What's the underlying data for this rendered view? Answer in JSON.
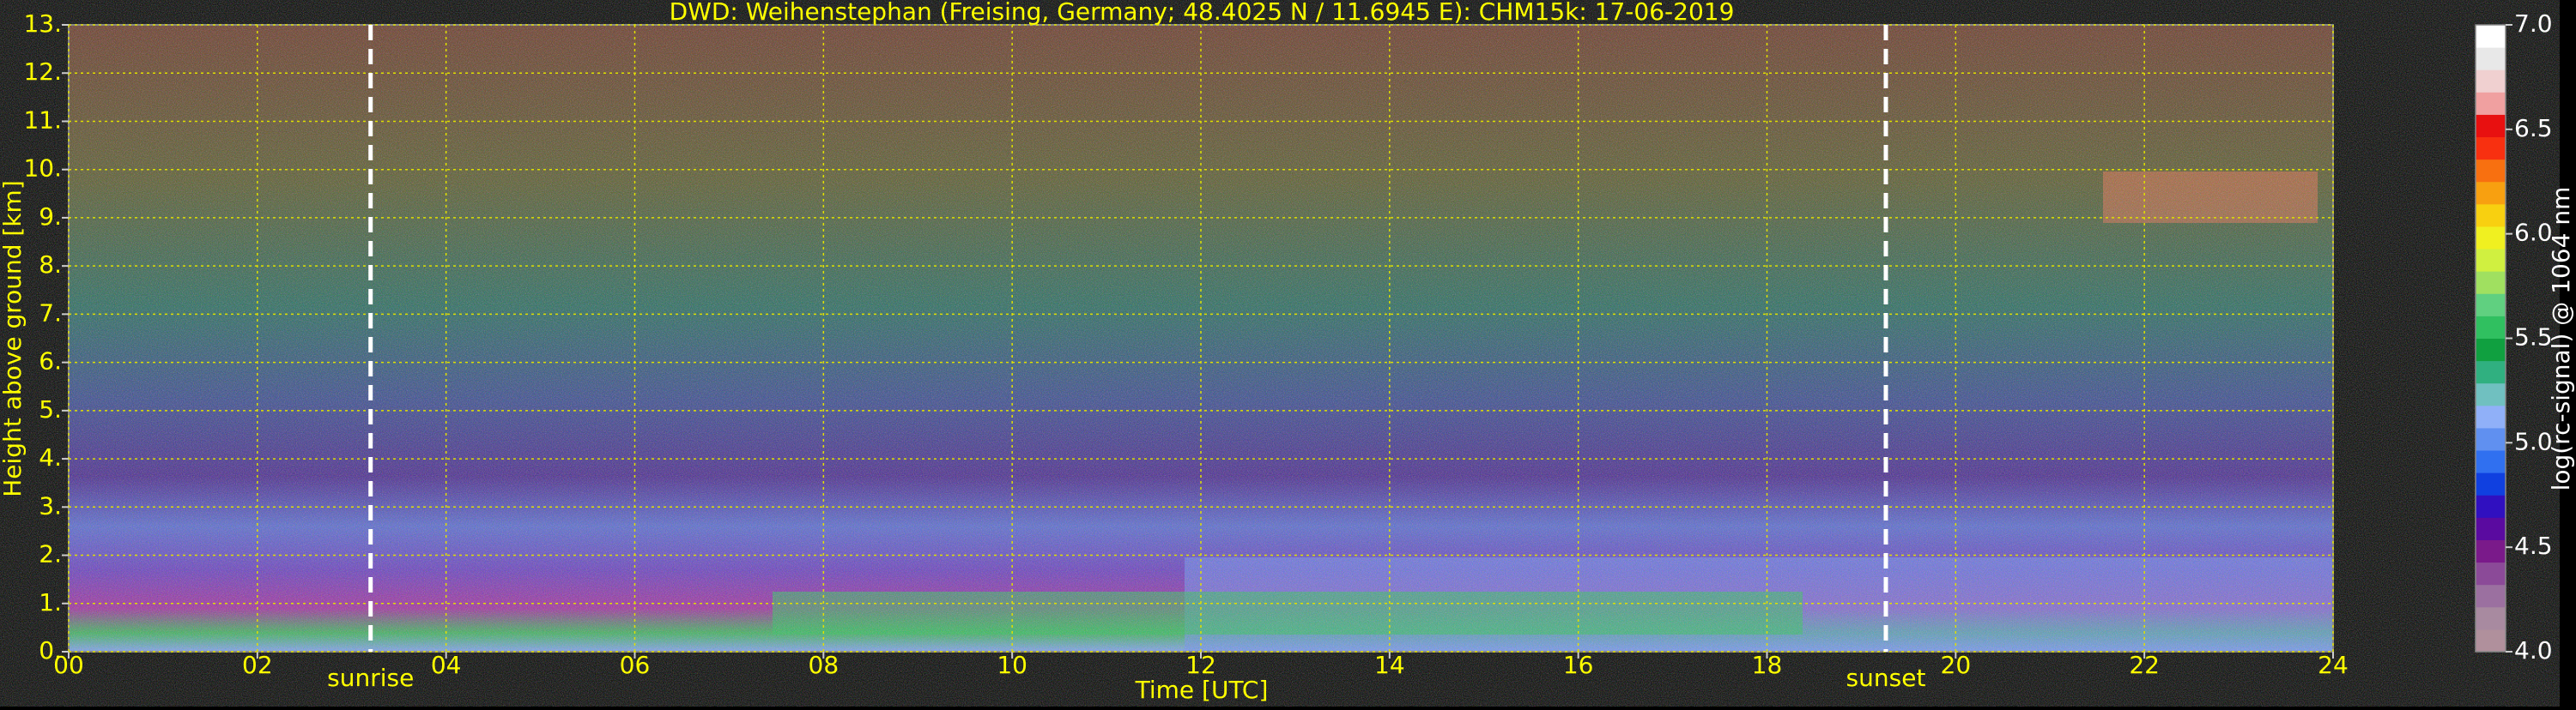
{
  "chart_data": {
    "type": "heatmap",
    "title": "DWD: Weihenstephan (Freising, Germany; 48.4025 N / 11.6945 E):    CHM15k: 17-06-2019",
    "x_label": "Time [UTC]",
    "y_label": "Height above ground [km]",
    "colorbar_label": "log(rc-signal) @ 1064 nm",
    "xlim": [
      0,
      24
    ],
    "xticks": [
      {
        "value": 0,
        "label": "00"
      },
      {
        "value": 2,
        "label": "02"
      },
      {
        "value": 4,
        "label": "04"
      },
      {
        "value": 6,
        "label": "06"
      },
      {
        "value": 8,
        "label": "08"
      },
      10,
      12,
      14,
      16,
      18,
      20,
      22,
      24
    ],
    "ylim": [
      0,
      13
    ],
    "yticks": [
      {
        "value": 0,
        "label": "0."
      },
      {
        "value": 1,
        "label": "1."
      },
      {
        "value": 2,
        "label": "2."
      },
      {
        "value": 3,
        "label": "3."
      },
      {
        "value": 4,
        "label": "4."
      },
      {
        "value": 5,
        "label": "5."
      },
      {
        "value": 6,
        "label": "6."
      },
      {
        "value": 7,
        "label": "7."
      },
      {
        "value": 8,
        "label": "8."
      },
      {
        "value": 9,
        "label": "9."
      },
      {
        "value": 10,
        "label": "10."
      },
      {
        "value": 11,
        "label": "11."
      },
      {
        "value": 12,
        "label": "12."
      },
      {
        "value": 13,
        "label": "13."
      }
    ],
    "zlim": [
      4,
      7
    ],
    "zticks": [
      {
        "value": 4,
        "label": "4.0"
      },
      {
        "value": 4.5,
        "label": "4.5"
      },
      {
        "value": 5,
        "label": "5.0"
      },
      {
        "value": 5.5,
        "label": "5.5"
      },
      {
        "value": 6,
        "label": "6.0"
      },
      {
        "value": 6.5,
        "label": "6.5"
      },
      {
        "value": 7,
        "label": "7.0"
      }
    ],
    "colormap": [
      "#b0909c",
      "#a88aa0",
      "#9b70a0",
      "#8b4a98",
      "#7a1a8a",
      "#5a0aa0",
      "#3010c0",
      "#1040e0",
      "#3070f0",
      "#6090f0",
      "#90b0f8",
      "#70c0c0",
      "#30b080",
      "#10a040",
      "#30c060",
      "#60d080",
      "#a0e060",
      "#d0f040",
      "#f0f020",
      "#f8d010",
      "#f8a010",
      "#f87010",
      "#f83010",
      "#e81010",
      "#f0a0a0",
      "#f0d0d0",
      "#e8e8e8",
      "#ffffff"
    ],
    "grid": true,
    "annotations": [
      {
        "text": "sunrise",
        "x": 3.2
      },
      {
        "text": "sunset",
        "x": 19.26
      }
    ]
  }
}
